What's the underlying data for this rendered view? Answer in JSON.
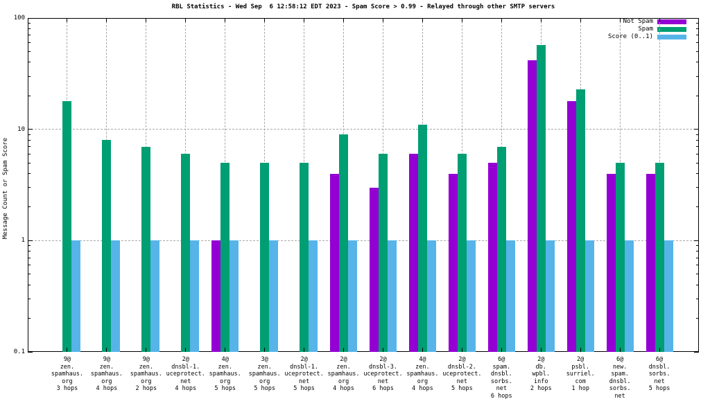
{
  "chart_data": {
    "type": "bar",
    "title": "RBL Statistics - Wed Sep  6 12:58:12 EDT 2023 - Spam Score > 0.99 - Relayed through other SMTP servers",
    "xlabel": "",
    "ylabel": "Message Count or Spam Score",
    "y_scale": "log10",
    "ylim": [
      0.1,
      100
    ],
    "ytick_values": [
      100,
      10,
      1,
      0.1
    ],
    "ytick_labels": [
      "100",
      "10",
      "1",
      "0.1"
    ],
    "grid": true,
    "legend_position": "top-right-inside",
    "categories": [
      "9@\nzen.\nspamhaus.\norg\n3 hops",
      "9@\nzen.\nspamhaus.\norg\n4 hops",
      "9@\nzen.\nspamhaus.\norg\n2 hops",
      "2@\ndnsbl-1.\nuceprotect.\nnet\n4 hops",
      "4@\nzen.\nspamhaus.\norg\n5 hops",
      "3@\nzen.\nspamhaus.\norg\n5 hops",
      "2@\ndnsbl-1.\nuceprotect.\nnet\n5 hops",
      "2@\nzen.\nspamhaus.\norg\n4 hops",
      "2@\ndnsbl-3.\nuceprotect.\nnet\n6 hops",
      "4@\nzen.\nspamhaus.\norg\n4 hops",
      "2@\ndnsbl-2.\nuceprotect.\nnet\n5 hops",
      "6@\nspam.\ndnsbl.\nsorbs.\nnet\n6 hops",
      "2@\ndb.\nwpbl.\ninfo\n2 hops",
      "2@\npsbl.\nsurriel.\ncom\n1 hop",
      "6@\nnew.\nspam.\ndnsbl.\nsorbs.\nnet\n5 hops",
      "6@\ndnsbl.\nsorbs.\nnet\n5 hops"
    ],
    "series": [
      {
        "name": "Not Spam",
        "color": "#9400d3",
        "values": [
          null,
          null,
          null,
          null,
          1,
          null,
          null,
          4,
          3,
          6,
          4,
          5,
          42,
          18,
          4,
          4
        ]
      },
      {
        "name": "Spam",
        "color": "#009e73",
        "values": [
          18,
          8,
          7,
          6,
          5,
          5,
          5,
          9,
          6,
          11,
          6,
          7,
          57,
          23,
          5,
          5
        ]
      },
      {
        "name": "Score (0..1)",
        "color": "#56b4e9",
        "values": [
          1,
          1,
          1,
          1,
          1,
          1,
          1,
          1,
          1,
          1,
          1,
          1,
          1,
          1,
          1,
          1
        ]
      }
    ]
  }
}
